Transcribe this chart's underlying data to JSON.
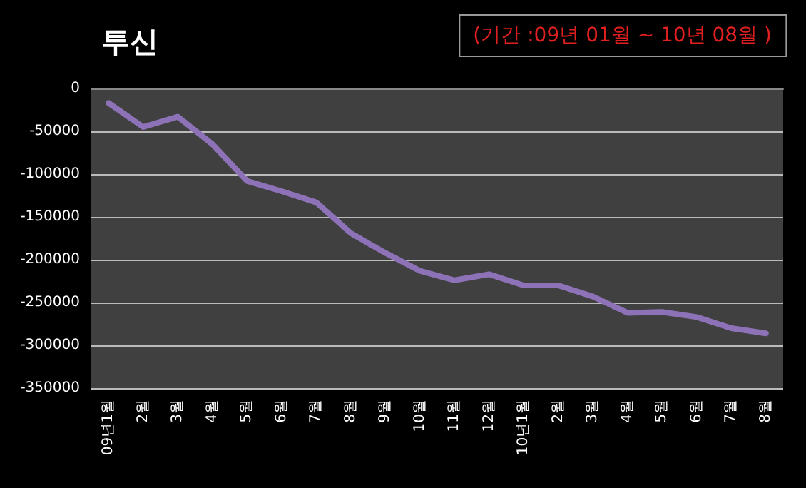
{
  "chart_data": {
    "type": "line",
    "title": "투신",
    "subtitle": "(기간 :09년 01월 ~ 10년 08월 )",
    "categories": [
      "09년1월",
      "2월",
      "3월",
      "4월",
      "5월",
      "6월",
      "7월",
      "8월",
      "9월",
      "10월",
      "11월",
      "12월",
      "10년1월",
      "2월",
      "3월",
      "4월",
      "5월",
      "6월",
      "7월",
      "8월"
    ],
    "series": [
      {
        "color": "#8e72b8",
        "values": [
          -17000,
          -45000,
          -33000,
          -65000,
          -108000,
          -120000,
          -133000,
          -169000,
          -192000,
          -213000,
          -224000,
          -217000,
          -230000,
          -230000,
          -243000,
          -262000,
          -261000,
          -267000,
          -280000,
          -286000
        ]
      }
    ],
    "ylim": [
      -350000,
      0
    ],
    "yticks": [
      -350000,
      -300000,
      -250000,
      -200000,
      -150000,
      -100000,
      -50000,
      0
    ],
    "grid": "y",
    "marker": "none",
    "line_style": "solid"
  }
}
